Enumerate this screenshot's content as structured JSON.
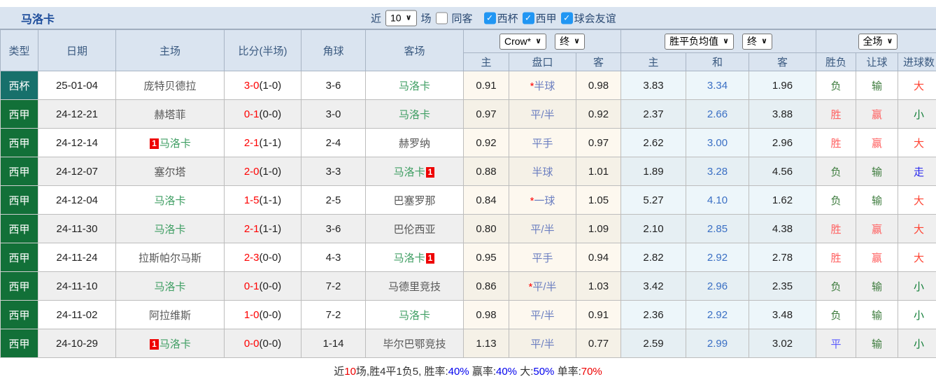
{
  "title": "马洛卡",
  "filter_bar": {
    "recent_label": "近",
    "recent_value": "10",
    "games_label": "场",
    "same_away_label": "同客",
    "same_away_checked": false,
    "leagues": [
      {
        "label": "西杯",
        "checked": true
      },
      {
        "label": "西甲",
        "checked": true
      },
      {
        "label": "球会友谊",
        "checked": true
      }
    ]
  },
  "header": {
    "type": "类型",
    "date": "日期",
    "home": "主场",
    "score": "比分(半场)",
    "corner": "角球",
    "away": "客场",
    "odds_select": "Crow*",
    "odds_time_select": "终",
    "odds_home": "主",
    "odds_handicap": "盘口",
    "odds_away": "客",
    "avg_select": "胜平负均值",
    "avg_time_select": "终",
    "avg_home": "主",
    "avg_draw": "和",
    "avg_away": "客",
    "result_select": "全场",
    "wdl": "胜负",
    "handicap_result": "让球",
    "goals": "进球数"
  },
  "rows": [
    {
      "type": "西杯",
      "type_key": "cup",
      "date": "25-01-04",
      "home_card": "",
      "home": "庞特贝德拉",
      "home_is_focus": false,
      "score_ft": "3-0",
      "score_ht": "(1-0)",
      "corner": "3-6",
      "away": "马洛卡",
      "away_card": "",
      "away_is_focus": true,
      "odds_home": "0.91",
      "pick_star": "*",
      "pick": "半球",
      "odds_away": "0.98",
      "avg_home": "3.83",
      "avg_draw": "3.34",
      "avg_away": "1.96",
      "wdl": "负",
      "wdl_key": "lose",
      "let": "输",
      "let_key": "lose",
      "goal": "大",
      "goal_key": "big"
    },
    {
      "type": "西甲",
      "type_key": "league",
      "date": "24-12-21",
      "home_card": "",
      "home": "赫塔菲",
      "home_is_focus": false,
      "score_ft": "0-1",
      "score_ht": "(0-0)",
      "corner": "3-0",
      "away": "马洛卡",
      "away_card": "",
      "away_is_focus": true,
      "odds_home": "0.97",
      "pick_star": "",
      "pick": "平/半",
      "odds_away": "0.92",
      "avg_home": "2.37",
      "avg_draw": "2.66",
      "avg_away": "3.88",
      "wdl": "胜",
      "wdl_key": "win",
      "let": "赢",
      "let_key": "win",
      "goal": "小",
      "goal_key": "small"
    },
    {
      "type": "西甲",
      "type_key": "league",
      "date": "24-12-14",
      "home_card": "1",
      "home": "马洛卡",
      "home_is_focus": true,
      "score_ft": "2-1",
      "score_ht": "(1-1)",
      "corner": "2-4",
      "away": "赫罗纳",
      "away_card": "",
      "away_is_focus": false,
      "odds_home": "0.92",
      "pick_star": "",
      "pick": "平手",
      "odds_away": "0.97",
      "avg_home": "2.62",
      "avg_draw": "3.00",
      "avg_away": "2.96",
      "wdl": "胜",
      "wdl_key": "win",
      "let": "赢",
      "let_key": "win",
      "goal": "大",
      "goal_key": "big"
    },
    {
      "type": "西甲",
      "type_key": "league",
      "date": "24-12-07",
      "home_card": "",
      "home": "塞尔塔",
      "home_is_focus": false,
      "score_ft": "2-0",
      "score_ht": "(1-0)",
      "corner": "3-3",
      "away": "马洛卡",
      "away_card": "1",
      "away_is_focus": true,
      "odds_home": "0.88",
      "pick_star": "",
      "pick": "半球",
      "odds_away": "1.01",
      "avg_home": "1.89",
      "avg_draw": "3.28",
      "avg_away": "4.56",
      "wdl": "负",
      "wdl_key": "lose",
      "let": "输",
      "let_key": "lose",
      "goal": "走",
      "goal_key": "push"
    },
    {
      "type": "西甲",
      "type_key": "league",
      "date": "24-12-04",
      "home_card": "",
      "home": "马洛卡",
      "home_is_focus": true,
      "score_ft": "1-5",
      "score_ht": "(1-1)",
      "corner": "2-5",
      "away": "巴塞罗那",
      "away_card": "",
      "away_is_focus": false,
      "odds_home": "0.84",
      "pick_star": "*",
      "pick": "一球",
      "odds_away": "1.05",
      "avg_home": "5.27",
      "avg_draw": "4.10",
      "avg_away": "1.62",
      "wdl": "负",
      "wdl_key": "lose",
      "let": "输",
      "let_key": "lose",
      "goal": "大",
      "goal_key": "big"
    },
    {
      "type": "西甲",
      "type_key": "league",
      "date": "24-11-30",
      "home_card": "",
      "home": "马洛卡",
      "home_is_focus": true,
      "score_ft": "2-1",
      "score_ht": "(1-1)",
      "corner": "3-6",
      "away": "巴伦西亚",
      "away_card": "",
      "away_is_focus": false,
      "odds_home": "0.80",
      "pick_star": "",
      "pick": "平/半",
      "odds_away": "1.09",
      "avg_home": "2.10",
      "avg_draw": "2.85",
      "avg_away": "4.38",
      "wdl": "胜",
      "wdl_key": "win",
      "let": "赢",
      "let_key": "win",
      "goal": "大",
      "goal_key": "big"
    },
    {
      "type": "西甲",
      "type_key": "league",
      "date": "24-11-24",
      "home_card": "",
      "home": "拉斯帕尔马斯",
      "home_is_focus": false,
      "score_ft": "2-3",
      "score_ht": "(0-0)",
      "corner": "4-3",
      "away": "马洛卡",
      "away_card": "1",
      "away_is_focus": true,
      "odds_home": "0.95",
      "pick_star": "",
      "pick": "平手",
      "odds_away": "0.94",
      "avg_home": "2.82",
      "avg_draw": "2.92",
      "avg_away": "2.78",
      "wdl": "胜",
      "wdl_key": "win",
      "let": "赢",
      "let_key": "win",
      "goal": "大",
      "goal_key": "big"
    },
    {
      "type": "西甲",
      "type_key": "league",
      "date": "24-11-10",
      "home_card": "",
      "home": "马洛卡",
      "home_is_focus": true,
      "score_ft": "0-1",
      "score_ht": "(0-0)",
      "corner": "7-2",
      "away": "马德里竞技",
      "away_card": "",
      "away_is_focus": false,
      "odds_home": "0.86",
      "pick_star": "*",
      "pick": "平/半",
      "odds_away": "1.03",
      "avg_home": "3.42",
      "avg_draw": "2.96",
      "avg_away": "2.35",
      "wdl": "负",
      "wdl_key": "lose",
      "let": "输",
      "let_key": "lose",
      "goal": "小",
      "goal_key": "small"
    },
    {
      "type": "西甲",
      "type_key": "league",
      "date": "24-11-02",
      "home_card": "",
      "home": "阿拉维斯",
      "home_is_focus": false,
      "score_ft": "1-0",
      "score_ht": "(0-0)",
      "corner": "7-2",
      "away": "马洛卡",
      "away_card": "",
      "away_is_focus": true,
      "odds_home": "0.98",
      "pick_star": "",
      "pick": "平/半",
      "odds_away": "0.91",
      "avg_home": "2.36",
      "avg_draw": "2.92",
      "avg_away": "3.48",
      "wdl": "负",
      "wdl_key": "lose",
      "let": "输",
      "let_key": "lose",
      "goal": "小",
      "goal_key": "small"
    },
    {
      "type": "西甲",
      "type_key": "league",
      "date": "24-10-29",
      "home_card": "1",
      "home": "马洛卡",
      "home_is_focus": true,
      "score_ft": "0-0",
      "score_ht": "(0-0)",
      "corner": "1-14",
      "away": "毕尔巴鄂竞技",
      "away_card": "",
      "away_is_focus": false,
      "odds_home": "1.13",
      "pick_star": "",
      "pick": "平/半",
      "odds_away": "0.77",
      "avg_home": "2.59",
      "avg_draw": "2.99",
      "avg_away": "3.02",
      "wdl": "平",
      "wdl_key": "draw",
      "let": "输",
      "let_key": "lose",
      "goal": "小",
      "goal_key": "small"
    }
  ],
  "summary": {
    "segments": [
      {
        "text": "近",
        "color": "dark"
      },
      {
        "text": "10",
        "color": "red"
      },
      {
        "text": "场,胜4平1负5, 胜率:",
        "color": "dark"
      },
      {
        "text": "40%",
        "color": "blue"
      },
      {
        "text": " 赢率:",
        "color": "dark"
      },
      {
        "text": "40%",
        "color": "blue"
      },
      {
        "text": " 大:",
        "color": "dark"
      },
      {
        "text": "50%",
        "color": "blue"
      },
      {
        "text": " 单率:",
        "color": "dark"
      },
      {
        "text": "70%",
        "color": "red"
      }
    ]
  },
  "colors": {
    "cup_bg": "#17706b",
    "league_bg": "#127038",
    "header_bg": "#dae4f0",
    "header_text": "#3b5a80",
    "win": "#ff6161",
    "lose": "#3e7c3e",
    "draw": "#5b5bff",
    "big": "#ff4433",
    "small": "#107d36",
    "push": "#2929ee",
    "focus_team": "#3f9e63",
    "team": "#575757",
    "pick": "#6b7ec0",
    "avg_draw": "#3a6fc4",
    "score": "#fe0000",
    "badge_bg": "#ee0000",
    "blue_pct": "#0000ee",
    "red_pct": "#ee0000"
  }
}
